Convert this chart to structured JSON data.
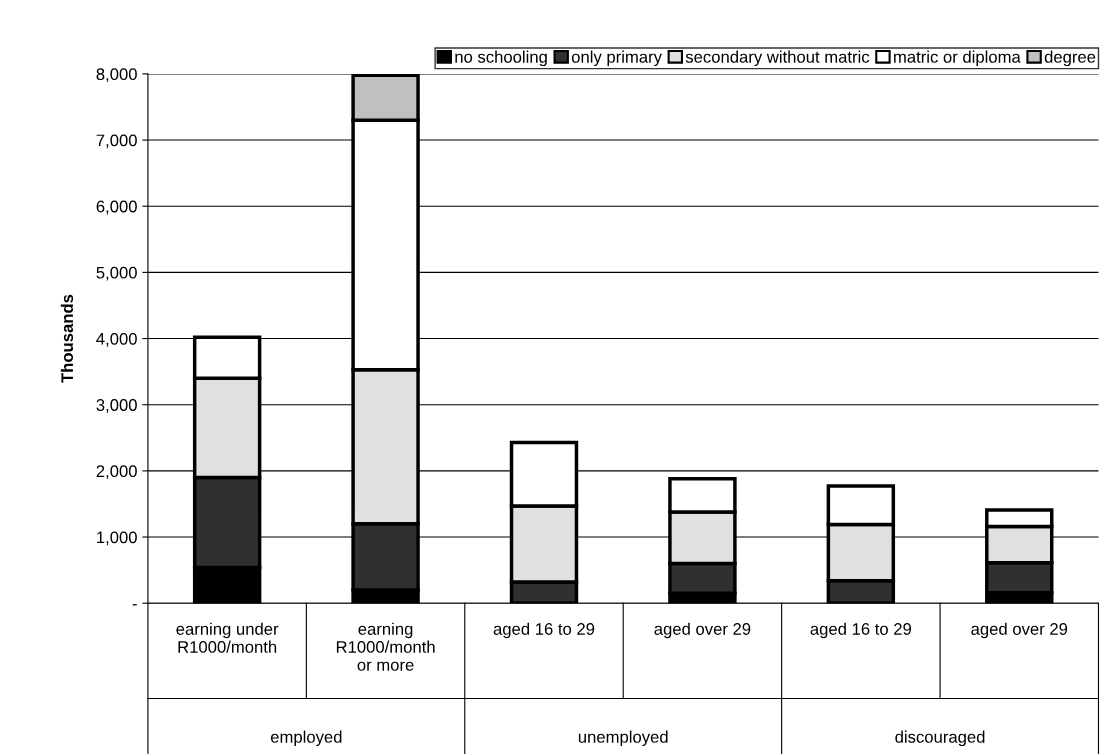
{
  "chart_data": {
    "type": "bar",
    "stacked": true,
    "ylabel": "Thousands",
    "categories": [
      "earning under\nR1000/month",
      "earning\nR1000/month\nor more",
      "aged 16 to 29",
      "aged over 29",
      "aged 16 to 29",
      "aged over 29"
    ],
    "series": [
      {
        "name": "no schooling",
        "color": "#000000",
        "values": [
          540,
          200,
          null,
          150,
          null,
          160
        ]
      },
      {
        "name": "only primary",
        "color": "#303030",
        "values": [
          1360,
          1000,
          320,
          450,
          340,
          450
        ]
      },
      {
        "name": "secondary without matric",
        "color": "#e0e0e0",
        "values": [
          1500,
          2330,
          1150,
          780,
          850,
          550
        ]
      },
      {
        "name": "matric or diploma",
        "color": "#ffffff",
        "values": [
          620,
          3770,
          960,
          500,
          580,
          250
        ]
      },
      {
        "name": "degree",
        "color": "#c0c0c0",
        "values": [
          null,
          680,
          null,
          null,
          null,
          null
        ]
      }
    ],
    "annotations": [
      "employed",
      "unemployed",
      "discouraged"
    ],
    "ylim": [
      0,
      8000
    ],
    "yticks": [
      {
        "value": 0,
        "label": "-"
      },
      {
        "value": 1000,
        "label": "1,000"
      },
      {
        "value": 2000,
        "label": "2,000"
      },
      {
        "value": 3000,
        "label": "3,000"
      },
      {
        "value": 4000,
        "label": "4,000"
      },
      {
        "value": 5000,
        "label": "5,000"
      },
      {
        "value": 6000,
        "label": "6,000"
      },
      {
        "value": 7000,
        "label": "7,000"
      },
      {
        "value": 8000,
        "label": "8,000"
      }
    ],
    "grid": "y",
    "legend": "top"
  }
}
